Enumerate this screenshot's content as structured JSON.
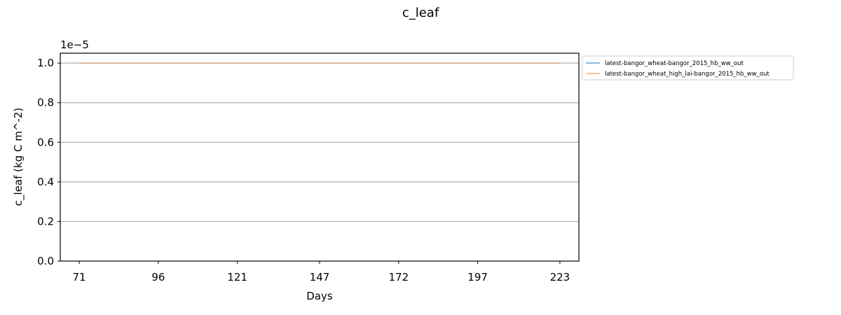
{
  "chart_data": {
    "type": "line",
    "title": "c_leaf",
    "xlabel": "Days",
    "ylabel": "c_leaf (kg C m^-2)",
    "y_offset_label": "1e−5",
    "x_range": [
      65,
      229
    ],
    "y_range": [
      0,
      1.05e-05
    ],
    "x_ticks": [
      71,
      96,
      121,
      147,
      172,
      197,
      223
    ],
    "x_tick_labels": [
      "71",
      "96",
      "121",
      "147",
      "172",
      "197",
      "223"
    ],
    "y_ticks": [
      0,
      2e-06,
      4e-06,
      6e-06,
      8e-06,
      1e-05
    ],
    "y_tick_labels": [
      "0.0",
      "0.2",
      "0.4",
      "0.6",
      "0.8",
      "1.0"
    ],
    "grid": "horizontal",
    "legend_position": "outside-upper-right",
    "series": [
      {
        "name": "latest-bangor_wheat-bangor_2015_hb_ww_out",
        "color": "#1f77b4",
        "x": [
          71,
          223
        ],
        "y": [
          1e-05,
          1e-05
        ]
      },
      {
        "name": "latest-bangor_wheat_high_lai-bangor_2015_hb_ww_out",
        "color": "#ff7f0e",
        "x": [
          71,
          223
        ],
        "y": [
          1e-05,
          1e-05
        ]
      }
    ]
  }
}
